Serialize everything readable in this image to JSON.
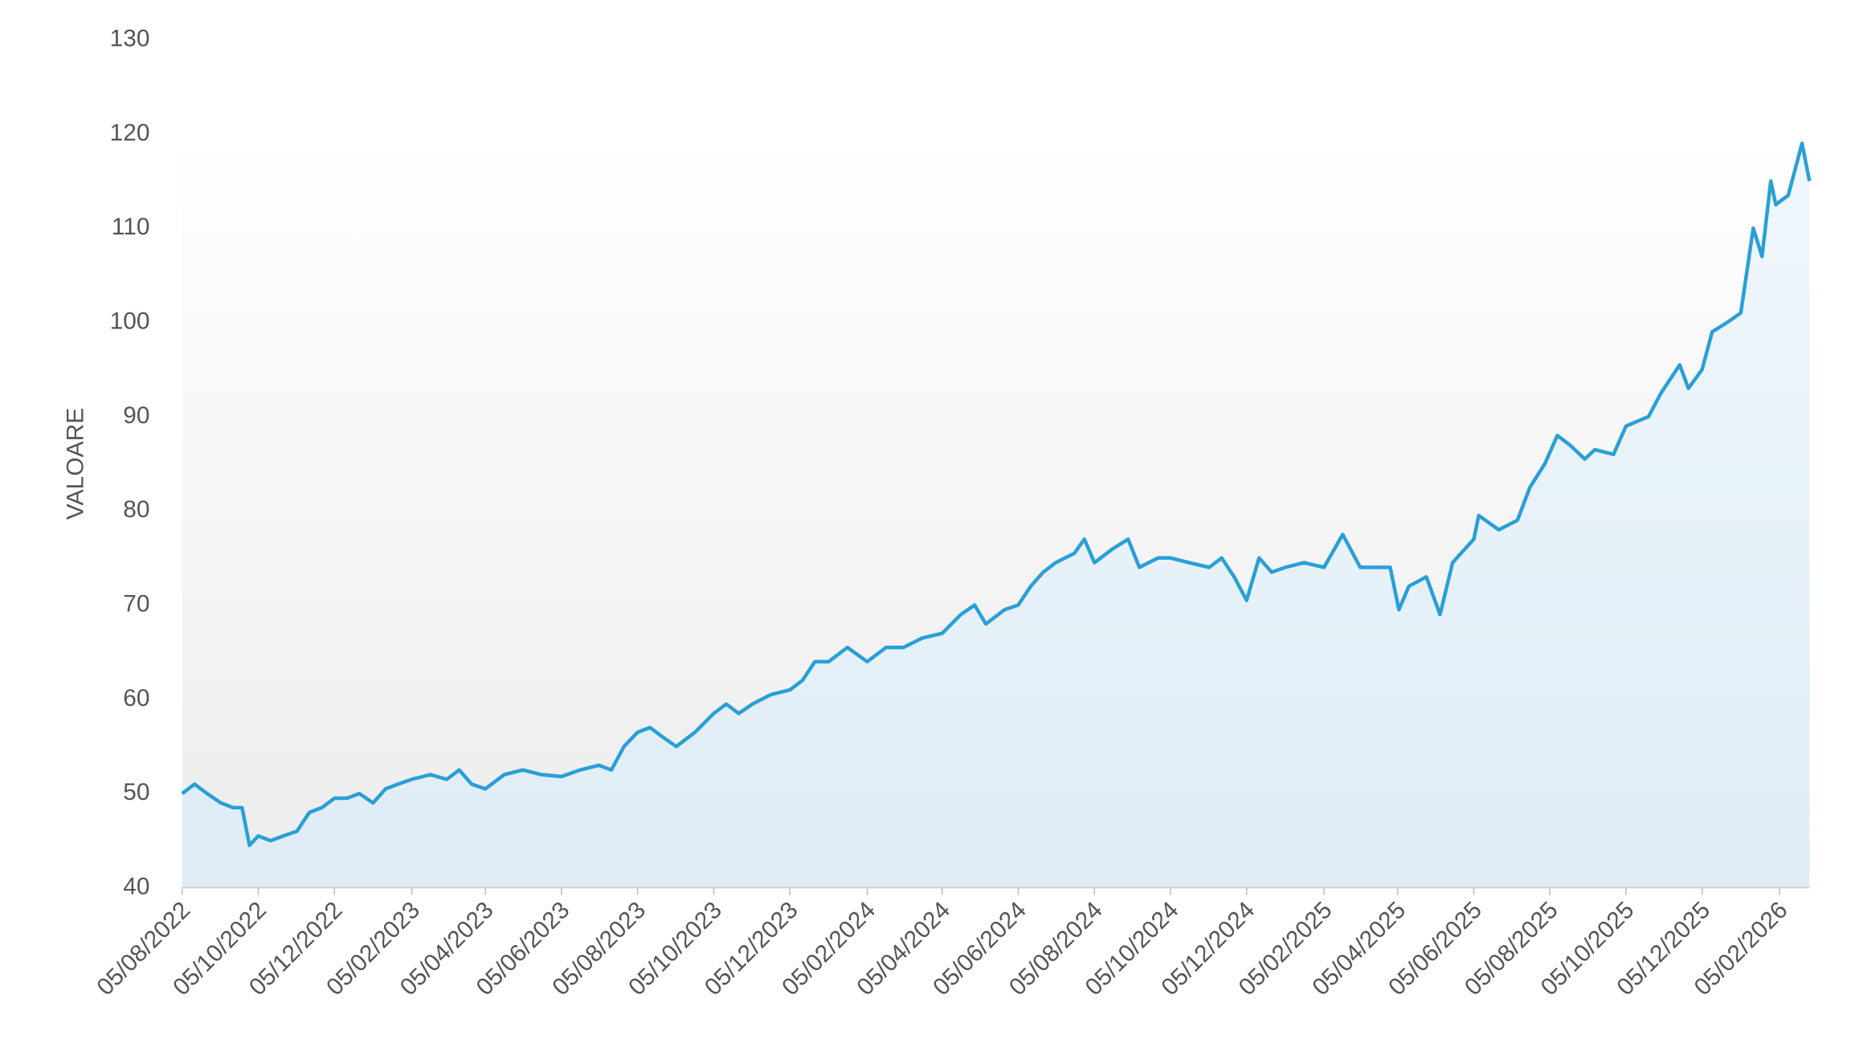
{
  "chart_data": {
    "type": "line",
    "y_label": "VALOARE",
    "color": "#2a9fd6",
    "x": [
      "05/08/2022",
      "15/08/2022",
      "25/08/2022",
      "05/09/2022",
      "15/09/2022",
      "22/09/2022",
      "28/09/2022",
      "05/10/2022",
      "15/10/2022",
      "25/10/2022",
      "05/11/2022",
      "15/11/2022",
      "25/11/2022",
      "05/12/2022",
      "15/12/2022",
      "25/12/2022",
      "05/01/2023",
      "15/01/2023",
      "25/01/2023",
      "05/02/2023",
      "20/02/2023",
      "05/03/2023",
      "15/03/2023",
      "25/03/2023",
      "05/04/2023",
      "20/04/2023",
      "05/05/2023",
      "20/05/2023",
      "05/06/2023",
      "20/06/2023",
      "05/07/2023",
      "15/07/2023",
      "25/07/2023",
      "05/08/2023",
      "15/08/2023",
      "25/08/2023",
      "05/09/2023",
      "20/09/2023",
      "05/10/2023",
      "15/10/2023",
      "25/10/2023",
      "05/11/2023",
      "20/11/2023",
      "05/12/2023",
      "15/12/2023",
      "25/12/2023",
      "05/01/2024",
      "20/01/2024",
      "05/02/2024",
      "20/02/2024",
      "05/03/2024",
      "20/03/2024",
      "05/04/2024",
      "20/04/2024",
      "01/05/2024",
      "10/05/2024",
      "25/05/2024",
      "05/06/2024",
      "15/06/2024",
      "25/06/2024",
      "05/07/2024",
      "20/07/2024",
      "28/07/2024",
      "05/08/2024",
      "20/08/2024",
      "01/09/2024",
      "10/09/2024",
      "25/09/2024",
      "05/10/2024",
      "20/10/2024",
      "05/11/2024",
      "15/11/2024",
      "25/11/2024",
      "05/12/2024",
      "15/12/2024",
      "25/12/2024",
      "05/01/2025",
      "20/01/2025",
      "05/02/2025",
      "20/02/2025",
      "06/03/2025",
      "30/03/2025",
      "06/04/2025",
      "14/04/2025",
      "28/04/2025",
      "09/05/2025",
      "19/05/2025",
      "05/06/2025",
      "09/06/2025",
      "25/06/2025",
      "10/07/2025",
      "20/07/2025",
      "01/08/2025",
      "11/08/2025",
      "21/08/2025",
      "02/09/2025",
      "10/09/2025",
      "25/09/2025",
      "05/10/2025",
      "23/10/2025",
      "02/11/2025",
      "17/11/2025",
      "24/11/2025",
      "05/12/2025",
      "13/12/2025",
      "25/12/2025",
      "05/01/2026",
      "15/01/2026",
      "22/01/2026",
      "29/01/2026",
      "02/02/2026",
      "12/02/2026",
      "23/02/2026",
      "01/03/2026"
    ],
    "values": [
      50,
      51,
      50,
      49,
      48.5,
      48.5,
      44.5,
      45.5,
      45,
      45.5,
      46,
      48,
      48.5,
      49.5,
      49.5,
      50,
      49,
      50.5,
      51,
      51.5,
      52,
      51.5,
      52.5,
      51,
      50.5,
      52,
      52.5,
      52,
      51.8,
      52.5,
      53,
      52.5,
      55,
      56.5,
      57,
      56,
      55,
      56.5,
      58.5,
      59.5,
      58.5,
      59.5,
      60.5,
      61,
      62,
      64,
      64,
      65.5,
      64,
      65.5,
      65.5,
      66.5,
      67,
      69,
      70,
      68,
      69.5,
      70,
      72,
      73.5,
      74.5,
      75.5,
      77,
      74.5,
      76,
      77,
      74,
      75,
      75,
      74.5,
      74,
      75,
      73,
      70.5,
      75,
      73.5,
      74,
      74.5,
      74,
      77.5,
      74,
      74,
      69.5,
      72,
      73,
      69,
      74.5,
      77,
      79.5,
      78,
      79,
      82.5,
      85,
      88,
      87,
      85.5,
      86.5,
      86,
      89,
      90,
      92.5,
      95.5,
      93,
      95,
      99,
      100,
      101,
      110,
      107,
      115,
      112.5,
      113.5,
      119,
      115
    ],
    "xlim": [
      "05/08/2022",
      "01/03/2026"
    ],
    "xticks": [
      "05/08/2022",
      "05/10/2022",
      "05/12/2022",
      "05/02/2023",
      "05/04/2023",
      "05/06/2023",
      "05/08/2023",
      "05/10/2023",
      "05/12/2023",
      "05/02/2024",
      "05/04/2024",
      "05/06/2024",
      "05/08/2024",
      "05/10/2024",
      "05/12/2024",
      "05/02/2025",
      "05/04/2025",
      "05/06/2025",
      "05/08/2025",
      "05/10/2025",
      "05/12/2025",
      "05/02/2026"
    ],
    "ylim": [
      40,
      130
    ],
    "yticks": [
      40,
      50,
      60,
      70,
      80,
      90,
      100,
      110,
      120,
      130
    ]
  }
}
